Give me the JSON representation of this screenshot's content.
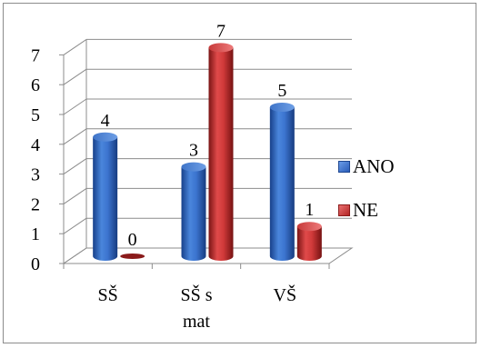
{
  "chart_data": {
    "type": "bar",
    "style": "3d-cylinder",
    "categories": [
      "SŠ",
      "SŠ s mat",
      "VŠ"
    ],
    "category_lines": [
      [
        "SŠ"
      ],
      [
        "SŠ s",
        "mat"
      ],
      [
        "VŠ"
      ]
    ],
    "series": [
      {
        "name": "ANO",
        "values": [
          4,
          3,
          5
        ],
        "color": "#2a63c0"
      },
      {
        "name": "NE",
        "values": [
          0,
          7,
          1
        ],
        "color": "#c03030"
      }
    ],
    "ylim": [
      0,
      7
    ],
    "yticks": [
      "0",
      "1",
      "2",
      "3",
      "4",
      "5",
      "6",
      "7"
    ],
    "data_labels": true,
    "grid": true,
    "legend_position": "right"
  }
}
